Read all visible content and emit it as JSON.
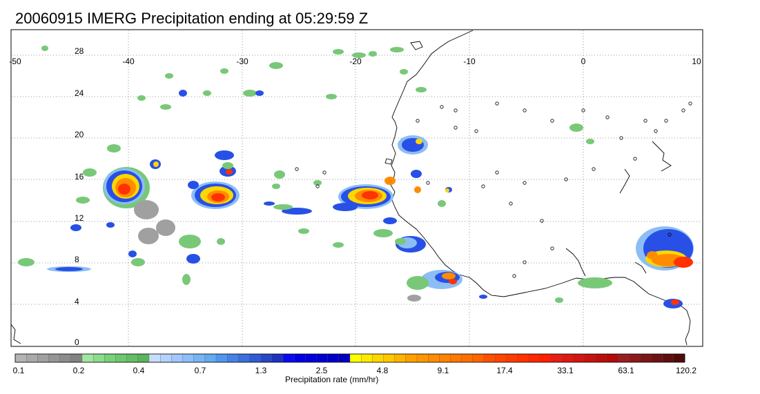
{
  "title": "20060915 IMERG Precipitation ending at 05:29:59 Z",
  "map": {
    "lon_ticks": [
      "-50",
      "-40",
      "-30",
      "-20",
      "-10",
      "0",
      "10"
    ],
    "lat_ticks": [
      "28",
      "24",
      "20",
      "16",
      "12",
      "8",
      "4",
      "0"
    ],
    "lon_range": [
      -50,
      10
    ],
    "lat_range": [
      -1,
      29
    ],
    "grid": "dotted"
  },
  "colorbar": {
    "title": "Precipitation rate (mm/hr)",
    "labels": [
      "0.1",
      "0.2",
      "0.4",
      "0.7",
      "1.3",
      "2.5",
      "4.8",
      "9.1",
      "17.4",
      "33.1",
      "63.1",
      "120.2"
    ],
    "colors": [
      "#b4b4b4",
      "#aaaaaa",
      "#a0a0a0",
      "#969696",
      "#8c8c8c",
      "#828282",
      "#a0e6a0",
      "#8cdc8c",
      "#78d278",
      "#6ec86e",
      "#64be64",
      "#5ab45a",
      "#c8dcff",
      "#b4d2ff",
      "#a0c8ff",
      "#8cbefa",
      "#78b4f5",
      "#64aaf0",
      "#5096eb",
      "#4682e6",
      "#3c6edc",
      "#325ad2",
      "#2846c8",
      "#1e32be",
      "#0a0af0",
      "#0000e6",
      "#0000dc",
      "#0000d2",
      "#0000c8",
      "#0000be",
      "#ffff00",
      "#ffeb00",
      "#ffd700",
      "#ffc800",
      "#ffb400",
      "#ffa000",
      "#ff9600",
      "#ff8c00",
      "#ff8200",
      "#ff7800",
      "#ff6e00",
      "#ff6400",
      "#ff5000",
      "#ff4600",
      "#ff3c00",
      "#ff3200",
      "#ff2800",
      "#ff1e00",
      "#e61e14",
      "#dc1a12",
      "#d21610",
      "#c8120e",
      "#be0e0c",
      "#b40a0a",
      "#9b1e1e",
      "#8c1a1a",
      "#7d1616",
      "#6e1212",
      "#5f0e0e",
      "#500a0a"
    ]
  }
}
